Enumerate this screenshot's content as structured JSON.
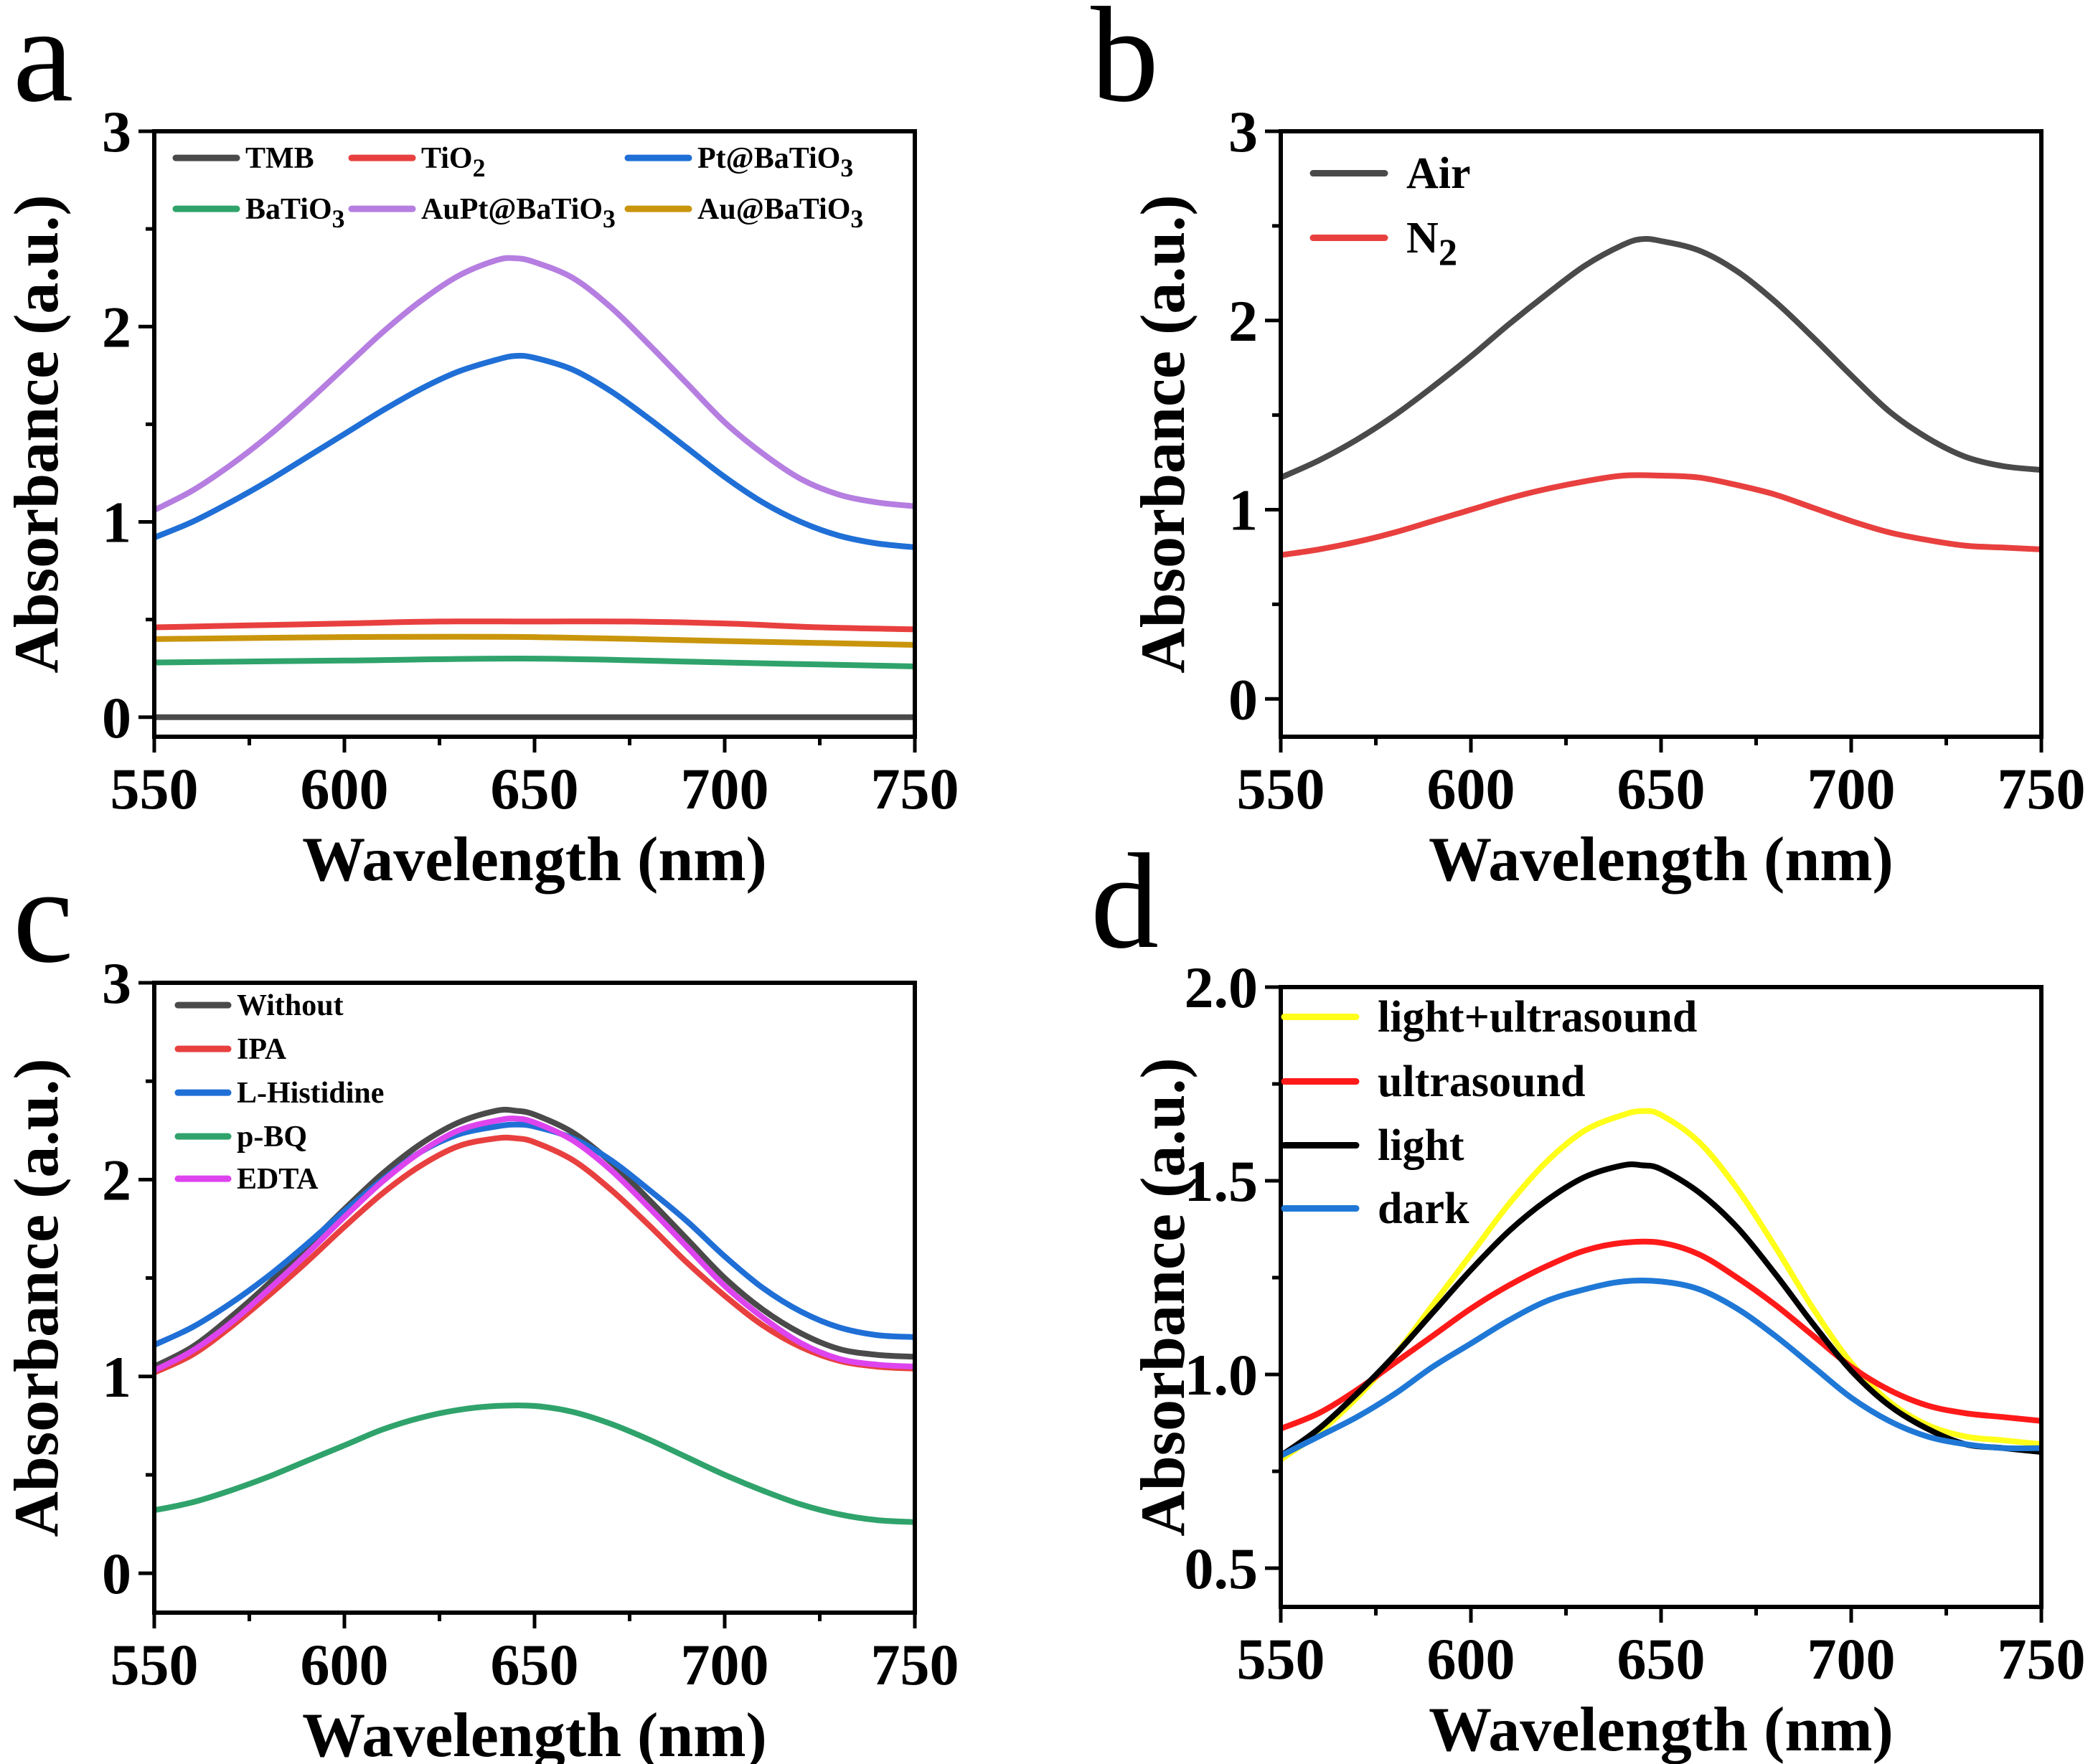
{
  "chart_data": [
    {
      "panel": "a",
      "type": "line",
      "xlabel": "Wavelength (nm)",
      "ylabel": "Absorbance (a.u.)",
      "xlim": [
        550,
        750
      ],
      "ylim": [
        -0.1,
        3
      ],
      "xticks": [
        550,
        600,
        650,
        700,
        750
      ],
      "yticks": [
        0,
        1,
        2,
        3
      ],
      "legend_placement": "top, three columns",
      "series": [
        {
          "name": "TMB",
          "sub": "",
          "color": "#4a4a4a",
          "x": [
            550,
            600,
            650,
            700,
            750
          ],
          "values": [
            0.0,
            0.0,
            0.0,
            0.0,
            0.0
          ]
        },
        {
          "name": "TiO",
          "sub": "2",
          "color": "#e8403f",
          "x": [
            550,
            575,
            600,
            625,
            650,
            675,
            700,
            725,
            750
          ],
          "values": [
            0.46,
            0.47,
            0.48,
            0.49,
            0.49,
            0.49,
            0.48,
            0.46,
            0.45
          ]
        },
        {
          "name": "Pt@BaTiO",
          "sub": "3",
          "color": "#1f6fd6",
          "x": [
            550,
            560,
            570,
            580,
            590,
            600,
            610,
            620,
            630,
            640,
            645,
            650,
            660,
            670,
            680,
            690,
            700,
            710,
            720,
            730,
            740,
            750
          ],
          "values": [
            0.92,
            1.0,
            1.1,
            1.21,
            1.33,
            1.45,
            1.57,
            1.68,
            1.77,
            1.83,
            1.85,
            1.84,
            1.78,
            1.67,
            1.53,
            1.38,
            1.23,
            1.1,
            1.0,
            0.93,
            0.89,
            0.87
          ]
        },
        {
          "name": "BaTiO",
          "sub": "3",
          "color": "#2fa36b",
          "x": [
            550,
            600,
            650,
            700,
            750
          ],
          "values": [
            0.28,
            0.29,
            0.3,
            0.28,
            0.26
          ]
        },
        {
          "name": "AuPt@BaTiO",
          "sub": "3",
          "color": "#b57ee0",
          "x": [
            550,
            560,
            570,
            580,
            590,
            600,
            610,
            620,
            630,
            640,
            645,
            650,
            660,
            670,
            680,
            690,
            700,
            710,
            720,
            730,
            740,
            750
          ],
          "values": [
            1.06,
            1.16,
            1.29,
            1.44,
            1.61,
            1.79,
            1.97,
            2.13,
            2.26,
            2.34,
            2.35,
            2.33,
            2.25,
            2.1,
            1.91,
            1.71,
            1.51,
            1.35,
            1.22,
            1.14,
            1.1,
            1.08
          ]
        },
        {
          "name": "Au@BaTiO",
          "sub": "3",
          "color": "#c9950c",
          "x": [
            550,
            600,
            650,
            700,
            750
          ],
          "values": [
            0.4,
            0.41,
            0.41,
            0.39,
            0.37
          ]
        }
      ]
    },
    {
      "panel": "b",
      "type": "line",
      "xlabel": "Wavelength (nm)",
      "ylabel": "Absorbance (a.u.)",
      "xlim": [
        550,
        750
      ],
      "ylim": [
        -0.2,
        3
      ],
      "xticks": [
        550,
        600,
        650,
        700,
        750
      ],
      "yticks": [
        0,
        1,
        2,
        3
      ],
      "legend_placement": "top-left",
      "series": [
        {
          "name": "Air",
          "sub": "",
          "color": "#4a4a4a",
          "x": [
            550,
            560,
            570,
            580,
            590,
            600,
            610,
            620,
            630,
            640,
            645,
            650,
            660,
            670,
            680,
            690,
            700,
            710,
            720,
            730,
            740,
            750
          ],
          "values": [
            1.17,
            1.26,
            1.37,
            1.5,
            1.65,
            1.81,
            1.98,
            2.14,
            2.29,
            2.4,
            2.43,
            2.42,
            2.37,
            2.26,
            2.1,
            1.91,
            1.71,
            1.52,
            1.38,
            1.28,
            1.23,
            1.21
          ]
        },
        {
          "name": "N",
          "sub": "2",
          "color": "#e8403f",
          "x": [
            550,
            560,
            570,
            580,
            590,
            600,
            610,
            620,
            630,
            640,
            650,
            660,
            670,
            680,
            690,
            700,
            710,
            720,
            730,
            740,
            750
          ],
          "values": [
            0.76,
            0.79,
            0.83,
            0.88,
            0.94,
            1.0,
            1.06,
            1.11,
            1.15,
            1.18,
            1.18,
            1.17,
            1.13,
            1.08,
            1.01,
            0.94,
            0.88,
            0.84,
            0.81,
            0.8,
            0.79
          ]
        }
      ]
    },
    {
      "panel": "c",
      "type": "line",
      "xlabel": "Wavelength (nm)",
      "ylabel": "Absorbance (a.u.)",
      "xlim": [
        550,
        750
      ],
      "ylim": [
        -0.2,
        3
      ],
      "xticks": [
        550,
        600,
        650,
        700,
        750
      ],
      "yticks": [
        0,
        1,
        2,
        3
      ],
      "legend_placement": "top-left",
      "series": [
        {
          "name": "Without",
          "sub": "",
          "color": "#4a4a4a",
          "x": [
            550,
            560,
            570,
            580,
            590,
            600,
            610,
            620,
            630,
            640,
            645,
            650,
            660,
            670,
            680,
            690,
            700,
            710,
            720,
            730,
            740,
            750
          ],
          "values": [
            1.05,
            1.15,
            1.3,
            1.47,
            1.66,
            1.85,
            2.03,
            2.18,
            2.29,
            2.35,
            2.35,
            2.33,
            2.24,
            2.09,
            1.9,
            1.7,
            1.5,
            1.34,
            1.22,
            1.14,
            1.11,
            1.1
          ]
        },
        {
          "name": "IPA",
          "sub": "",
          "color": "#e8403f",
          "x": [
            550,
            560,
            570,
            580,
            590,
            600,
            610,
            620,
            630,
            640,
            645,
            650,
            660,
            670,
            680,
            690,
            700,
            710,
            720,
            730,
            740,
            750
          ],
          "values": [
            1.02,
            1.11,
            1.25,
            1.41,
            1.58,
            1.76,
            1.93,
            2.07,
            2.17,
            2.21,
            2.21,
            2.19,
            2.1,
            1.95,
            1.77,
            1.58,
            1.41,
            1.26,
            1.15,
            1.08,
            1.05,
            1.04
          ]
        },
        {
          "name": "L-Histidine",
          "sub": "",
          "color": "#1f6fd6",
          "x": [
            550,
            560,
            570,
            580,
            590,
            600,
            610,
            620,
            630,
            640,
            645,
            650,
            660,
            670,
            680,
            690,
            700,
            710,
            720,
            730,
            740,
            750
          ],
          "values": [
            1.16,
            1.25,
            1.37,
            1.51,
            1.67,
            1.84,
            2.0,
            2.14,
            2.23,
            2.27,
            2.28,
            2.27,
            2.21,
            2.1,
            1.95,
            1.79,
            1.61,
            1.45,
            1.33,
            1.25,
            1.21,
            1.2
          ]
        },
        {
          "name": "p-BQ",
          "sub": "",
          "color": "#2fa36b",
          "x": [
            550,
            560,
            570,
            580,
            590,
            600,
            610,
            620,
            630,
            640,
            650,
            660,
            670,
            680,
            690,
            700,
            710,
            720,
            730,
            740,
            750
          ],
          "values": [
            0.32,
            0.36,
            0.42,
            0.49,
            0.57,
            0.65,
            0.73,
            0.79,
            0.83,
            0.85,
            0.85,
            0.82,
            0.76,
            0.68,
            0.59,
            0.5,
            0.42,
            0.35,
            0.3,
            0.27,
            0.26
          ]
        },
        {
          "name": "EDTA",
          "sub": "",
          "color": "#dd44ee",
          "x": [
            550,
            560,
            570,
            580,
            590,
            600,
            610,
            620,
            630,
            640,
            645,
            650,
            660,
            670,
            680,
            690,
            700,
            710,
            720,
            730,
            740,
            750
          ],
          "values": [
            1.03,
            1.13,
            1.27,
            1.44,
            1.62,
            1.81,
            1.99,
            2.14,
            2.25,
            2.3,
            2.31,
            2.29,
            2.2,
            2.05,
            1.86,
            1.66,
            1.46,
            1.3,
            1.17,
            1.09,
            1.06,
            1.05
          ]
        }
      ]
    },
    {
      "panel": "d",
      "type": "line",
      "xlabel": "Wavelength (nm)",
      "ylabel": "Absorbance (a.u.)",
      "xlim": [
        550,
        750
      ],
      "ylim": [
        0.4,
        2.0
      ],
      "xticks": [
        550,
        600,
        650,
        700,
        750
      ],
      "yticks": [
        0.5,
        1.0,
        1.5,
        2.0
      ],
      "ytick_labels": [
        "0.5",
        "1.0",
        "1.5",
        "2.0"
      ],
      "legend_placement": "top-left",
      "series": [
        {
          "name": "light+ultrasound",
          "sub": "",
          "color": "#ffff1a",
          "x": [
            550,
            560,
            570,
            580,
            590,
            600,
            610,
            620,
            630,
            640,
            645,
            650,
            660,
            670,
            680,
            690,
            700,
            710,
            720,
            730,
            740,
            750
          ],
          "values": [
            0.78,
            0.85,
            0.94,
            1.05,
            1.18,
            1.31,
            1.44,
            1.55,
            1.63,
            1.67,
            1.68,
            1.67,
            1.6,
            1.48,
            1.33,
            1.17,
            1.03,
            0.93,
            0.87,
            0.84,
            0.83,
            0.82
          ]
        },
        {
          "name": "ultrasound",
          "sub": "",
          "color": "#ff1a1a",
          "x": [
            550,
            560,
            570,
            580,
            590,
            600,
            610,
            620,
            630,
            640,
            650,
            660,
            670,
            680,
            690,
            700,
            710,
            720,
            730,
            740,
            750
          ],
          "values": [
            0.86,
            0.9,
            0.96,
            1.03,
            1.1,
            1.17,
            1.23,
            1.28,
            1.32,
            1.34,
            1.34,
            1.31,
            1.25,
            1.18,
            1.1,
            1.02,
            0.96,
            0.92,
            0.9,
            0.89,
            0.88
          ]
        },
        {
          "name": "light",
          "sub": "",
          "color": "#000000",
          "x": [
            550,
            560,
            570,
            580,
            590,
            600,
            610,
            620,
            630,
            640,
            645,
            650,
            660,
            670,
            680,
            690,
            700,
            710,
            720,
            730,
            740,
            750
          ],
          "values": [
            0.79,
            0.86,
            0.95,
            1.05,
            1.16,
            1.27,
            1.37,
            1.45,
            1.51,
            1.54,
            1.54,
            1.53,
            1.47,
            1.38,
            1.26,
            1.13,
            1.01,
            0.92,
            0.86,
            0.82,
            0.81,
            0.8
          ]
        },
        {
          "name": "dark",
          "sub": "",
          "color": "#1f78d6",
          "x": [
            550,
            560,
            570,
            580,
            590,
            600,
            610,
            620,
            630,
            640,
            650,
            660,
            670,
            680,
            690,
            700,
            710,
            720,
            730,
            740,
            750
          ],
          "values": [
            0.79,
            0.84,
            0.89,
            0.95,
            1.02,
            1.08,
            1.14,
            1.19,
            1.22,
            1.24,
            1.24,
            1.22,
            1.17,
            1.1,
            1.02,
            0.94,
            0.88,
            0.84,
            0.82,
            0.81,
            0.81
          ]
        }
      ]
    }
  ]
}
